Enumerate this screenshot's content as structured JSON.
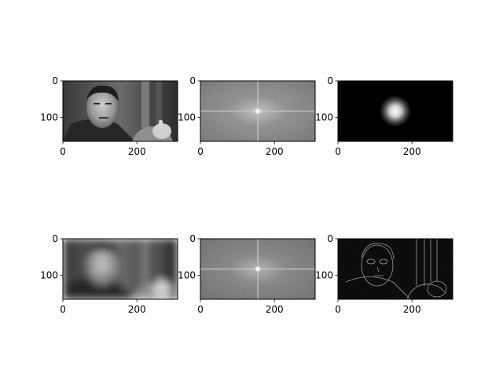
{
  "figure": {
    "background": "#ffffff",
    "rows": 2,
    "cols": 3,
    "axis_color": "#000000",
    "colormap": "gray"
  },
  "chart_data": [
    {
      "type": "heatmap",
      "content": "grayscale-photo-portrait",
      "extent": {
        "x": [
          0,
          310
        ],
        "y": [
          165,
          0
        ]
      },
      "xticks": [
        0,
        200
      ],
      "yticks": [
        0,
        100
      ],
      "xtick_labels": [
        "0",
        "200"
      ],
      "ytick_labels": [
        "0",
        "100"
      ]
    },
    {
      "type": "heatmap",
      "content": "fft-magnitude-spectrum",
      "extent": {
        "x": [
          0,
          310
        ],
        "y": [
          165,
          0
        ]
      },
      "xticks": [
        0,
        200
      ],
      "yticks": [
        0,
        100
      ],
      "xtick_labels": [
        "0",
        "200"
      ],
      "ytick_labels": [
        "0",
        "100"
      ]
    },
    {
      "type": "heatmap",
      "content": "gaussian-lowpass-mask",
      "extent": {
        "x": [
          0,
          310
        ],
        "y": [
          165,
          0
        ]
      },
      "xticks": [
        0,
        200
      ],
      "yticks": [
        0,
        100
      ],
      "xtick_labels": [
        "0",
        "200"
      ],
      "ytick_labels": [
        "0",
        "100"
      ]
    },
    {
      "type": "heatmap",
      "content": "blurred-photo-portrait",
      "extent": {
        "x": [
          0,
          310
        ],
        "y": [
          165,
          0
        ]
      },
      "xticks": [
        0,
        200
      ],
      "yticks": [
        0,
        100
      ],
      "xtick_labels": [
        "0",
        "200"
      ],
      "ytick_labels": [
        "0",
        "100"
      ]
    },
    {
      "type": "heatmap",
      "content": "fft-magnitude-spectrum-filtered",
      "extent": {
        "x": [
          0,
          310
        ],
        "y": [
          165,
          0
        ]
      },
      "xticks": [
        0,
        200
      ],
      "yticks": [
        0,
        100
      ],
      "xtick_labels": [
        "0",
        "200"
      ],
      "ytick_labels": [
        "0",
        "100"
      ]
    },
    {
      "type": "heatmap",
      "content": "edge-detail-highpass",
      "extent": {
        "x": [
          0,
          310
        ],
        "y": [
          165,
          0
        ]
      },
      "xticks": [
        0,
        200
      ],
      "yticks": [
        0,
        100
      ],
      "xtick_labels": [
        "0",
        "200"
      ],
      "ytick_labels": [
        "0",
        "100"
      ]
    }
  ]
}
